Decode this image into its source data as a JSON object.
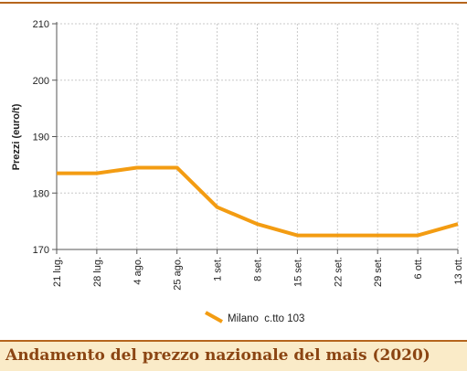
{
  "chart_data": {
    "type": "line",
    "title": "",
    "xlabel": "",
    "ylabel": "Prezzi (euro/t)",
    "ylim": [
      170,
      210
    ],
    "yticks": [
      170,
      180,
      190,
      200,
      210
    ],
    "categories": [
      "21 lug.",
      "28 lug.",
      "4 ago.",
      "25 ago.",
      "1 set.",
      "8 set.",
      "15 set.",
      "22 set.",
      "29 set.",
      "6 ott.",
      "13 ott."
    ],
    "series": [
      {
        "name": "Milano  c.tto 103",
        "values": [
          183.5,
          183.5,
          184.5,
          184.5,
          177.5,
          174.5,
          172.5,
          172.5,
          172.5,
          172.5,
          174.5
        ]
      }
    ],
    "grid": true,
    "legend": "bottom-center",
    "colors": {
      "line": "#f39c12",
      "grid": "#c8c8c8",
      "axis": "#555555"
    }
  },
  "caption": {
    "text": "Andamento del prezzo nazionale del mais (2020)"
  }
}
